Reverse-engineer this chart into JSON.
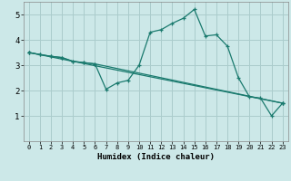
{
  "xlabel": "Humidex (Indice chaleur)",
  "ylabel": "",
  "xlim": [
    -0.5,
    23.5
  ],
  "ylim": [
    0,
    5.5
  ],
  "xticks": [
    0,
    1,
    2,
    3,
    4,
    5,
    6,
    7,
    8,
    9,
    10,
    11,
    12,
    13,
    14,
    15,
    16,
    17,
    18,
    19,
    20,
    21,
    22,
    23
  ],
  "yticks": [
    1,
    2,
    3,
    4,
    5
  ],
  "line_color": "#1a7a6e",
  "bg_color": "#cce8e8",
  "grid_color": "#aacccc",
  "line1_x": [
    0,
    1,
    2,
    3,
    4,
    5,
    6,
    7,
    8,
    9,
    10,
    11,
    12,
    13,
    14,
    15,
    16,
    17,
    18,
    19,
    20,
    21,
    22,
    23
  ],
  "line1_y": [
    3.5,
    3.42,
    3.35,
    3.3,
    3.15,
    3.1,
    3.05,
    2.05,
    2.3,
    2.4,
    3.0,
    4.3,
    4.4,
    4.65,
    4.85,
    5.2,
    4.15,
    4.2,
    3.75,
    2.5,
    1.75,
    1.7,
    1.0,
    1.5
  ],
  "line2_x": [
    0,
    1,
    2,
    3,
    4,
    5,
    6,
    23
  ],
  "line2_y": [
    3.5,
    3.42,
    3.35,
    3.3,
    3.15,
    3.1,
    3.05,
    1.5
  ],
  "line3_x": [
    0,
    23
  ],
  "line3_y": [
    3.5,
    1.5
  ]
}
